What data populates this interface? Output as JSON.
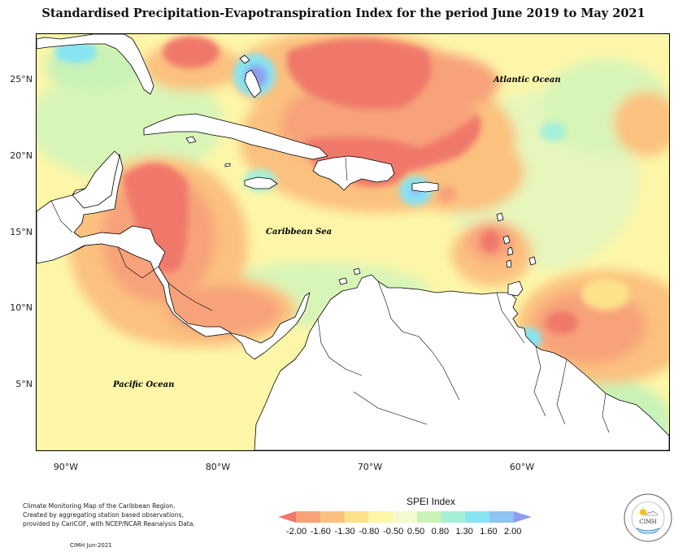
{
  "title": "Standardised Precipitation-Evapotranspiration Index for the period June 2019 to May 2021",
  "lat_labels": [
    "25°N",
    "20°N",
    "15°N",
    "10°N",
    "5°N"
  ],
  "lon_labels": [
    "90°W",
    "80°W",
    "70°W",
    "60°W"
  ],
  "ocean_labels": {
    "atlantic": "Atlantic Ocean",
    "caribbean": "Caribbean Sea",
    "pacific": "Pacific Ocean"
  },
  "credit_lines": [
    "Climate Monitoring Map of the Caribbean Region.",
    "Created by aggregating station based observations,",
    "provided by CariCOF, with NCEP/NCAR Reanalysis Data."
  ],
  "stamp": "CIMH Jun-2021",
  "legend": {
    "title": "SPEI Index",
    "labels": [
      "-2.00",
      "-1.60",
      "-1.30",
      "-0.80",
      "-0.50",
      "0.50",
      "0.80",
      "1.30",
      "1.60",
      "2.00"
    ],
    "colors": [
      "#f0786b",
      "#f7a27a",
      "#fbc17e",
      "#fde28a",
      "#fdf6a8",
      "#f4f9d0",
      "#c9f2b6",
      "#a5efd8",
      "#86e4f3",
      "#8fc3f2",
      "#8f9df0"
    ]
  },
  "logo_text": "CIMH"
}
